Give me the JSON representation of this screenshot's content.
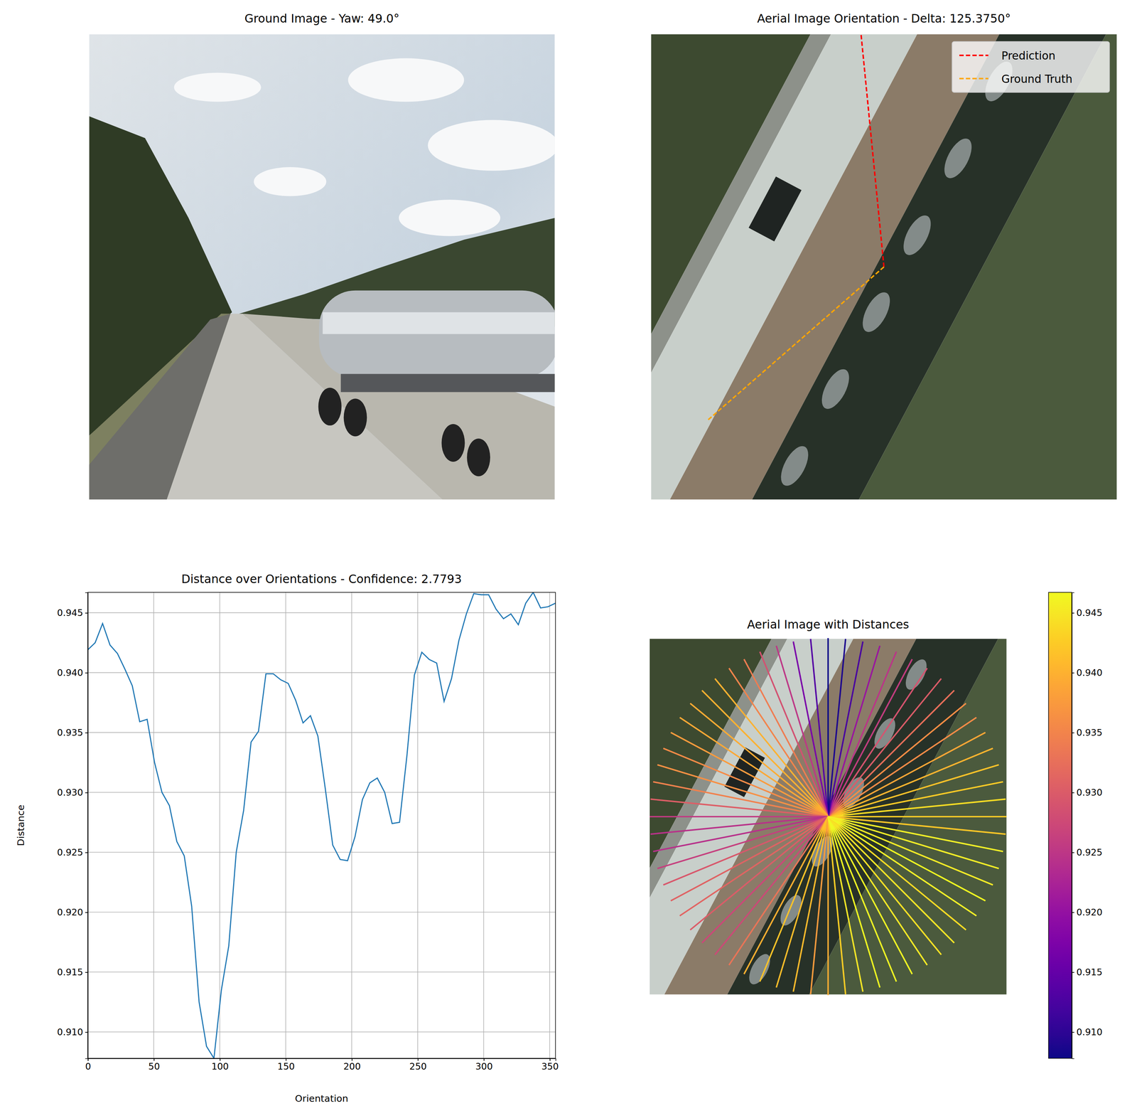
{
  "chart_data": [
    {
      "type": "image",
      "title": "Ground Image - Yaw: 49.0°"
    },
    {
      "type": "orientation",
      "title": "Aerial Image Orientation - Delta: 125.3750°",
      "legend": "upper right",
      "series": [
        {
          "name": "Prediction",
          "color": "#ff0000",
          "line_style": "dashed",
          "angle": 354.375
        },
        {
          "name": "Ground Truth",
          "color": "#ffa500",
          "line_style": "dashed",
          "angle": 229.0
        }
      ]
    },
    {
      "type": "line",
      "title": "Distance over Orientations - Confidence: 2.7793",
      "x_label": "Orientation",
      "y_label": "Distance",
      "color": "#1f77b4",
      "grid": true,
      "x": [
        0,
        5.625,
        11.25,
        16.875,
        22.5,
        28.125,
        33.75,
        39.375,
        45,
        50.625,
        56.25,
        61.875,
        67.5,
        73.125,
        78.75,
        84.375,
        90,
        95.625,
        101.25,
        106.875,
        112.5,
        118.125,
        123.75,
        129.375,
        135,
        140.625,
        146.25,
        151.875,
        157.5,
        163.125,
        168.75,
        174.375,
        180,
        185.625,
        191.25,
        196.875,
        202.5,
        208.125,
        213.75,
        219.375,
        225,
        230.625,
        236.25,
        241.875,
        247.5,
        253.125,
        258.75,
        264.375,
        270,
        275.625,
        281.25,
        286.875,
        292.5,
        298.125,
        303.75,
        309.375,
        315,
        320.625,
        326.25,
        331.875,
        337.5,
        343.125,
        348.75,
        354.375
      ],
      "values": [
        0.9419,
        0.9425,
        0.9441,
        0.9423,
        0.9416,
        0.9403,
        0.9389,
        0.9359,
        0.9361,
        0.9325,
        0.93,
        0.9289,
        0.9259,
        0.9247,
        0.9205,
        0.9125,
        0.9088,
        0.9078,
        0.9135,
        0.9172,
        0.925,
        0.9285,
        0.9342,
        0.9351,
        0.9399,
        0.9399,
        0.9394,
        0.9391,
        0.9377,
        0.9358,
        0.9364,
        0.9347,
        0.9303,
        0.9256,
        0.9244,
        0.9243,
        0.9263,
        0.9294,
        0.9308,
        0.9312,
        0.93,
        0.9274,
        0.9275,
        0.9331,
        0.9398,
        0.9417,
        0.9411,
        0.9408,
        0.9376,
        0.9395,
        0.9427,
        0.9449,
        0.9466,
        0.9465,
        0.9465,
        0.9453,
        0.9445,
        0.9449,
        0.944,
        0.9458,
        0.9467,
        0.9454,
        0.9455,
        0.9458
      ],
      "xlim": [
        0,
        354.375
      ],
      "xticks": [
        0,
        50,
        100,
        150,
        200,
        250,
        300,
        350
      ],
      "ylim": [
        0.9078,
        0.9467
      ],
      "yticks": [
        {
          "value": 0.91,
          "label": "0.910"
        },
        0.915,
        {
          "value": 0.92,
          "label": "0.920"
        },
        0.925,
        {
          "value": 0.93,
          "label": "0.930"
        },
        0.935,
        {
          "value": 0.94,
          "label": "0.940"
        },
        0.945
      ]
    },
    {
      "type": "radial",
      "title": "Aerial Image with Distances",
      "x": [
        0,
        5.625,
        11.25,
        16.875,
        22.5,
        28.125,
        33.75,
        39.375,
        45,
        50.625,
        56.25,
        61.875,
        67.5,
        73.125,
        78.75,
        84.375,
        90,
        95.625,
        101.25,
        106.875,
        112.5,
        118.125,
        123.75,
        129.375,
        135,
        140.625,
        146.25,
        151.875,
        157.5,
        163.125,
        168.75,
        174.375,
        180,
        185.625,
        191.25,
        196.875,
        202.5,
        208.125,
        213.75,
        219.375,
        225,
        230.625,
        236.25,
        241.875,
        247.5,
        253.125,
        258.75,
        264.375,
        270,
        275.625,
        281.25,
        286.875,
        292.5,
        298.125,
        303.75,
        309.375,
        315,
        320.625,
        326.25,
        331.875,
        337.5,
        343.125,
        348.75,
        354.375
      ],
      "values": [
        0.9419,
        0.9425,
        0.9441,
        0.9423,
        0.9416,
        0.9403,
        0.9389,
        0.9359,
        0.9361,
        0.9325,
        0.93,
        0.9289,
        0.9259,
        0.9247,
        0.9205,
        0.9125,
        0.9088,
        0.9078,
        0.9135,
        0.9172,
        0.925,
        0.9285,
        0.9342,
        0.9351,
        0.9399,
        0.9399,
        0.9394,
        0.9391,
        0.9377,
        0.9358,
        0.9364,
        0.9347,
        0.9303,
        0.9256,
        0.9244,
        0.9243,
        0.9263,
        0.9294,
        0.9308,
        0.9312,
        0.93,
        0.9274,
        0.9275,
        0.9331,
        0.9398,
        0.9417,
        0.9411,
        0.9408,
        0.9376,
        0.9395,
        0.9427,
        0.9449,
        0.9466,
        0.9465,
        0.9465,
        0.9453,
        0.9445,
        0.9449,
        0.944,
        0.9458,
        0.9467,
        0.9454,
        0.9455,
        0.9458
      ],
      "colorbar": {
        "range": [
          0.9078,
          0.9467
        ],
        "ticks": [
          {
            "value": 0.91,
            "label": "0.910"
          },
          0.915,
          {
            "value": 0.92,
            "label": "0.920"
          },
          0.925,
          {
            "value": 0.93,
            "label": "0.930"
          },
          0.935,
          {
            "value": 0.94,
            "label": "0.940"
          },
          0.945
        ]
      }
    }
  ]
}
